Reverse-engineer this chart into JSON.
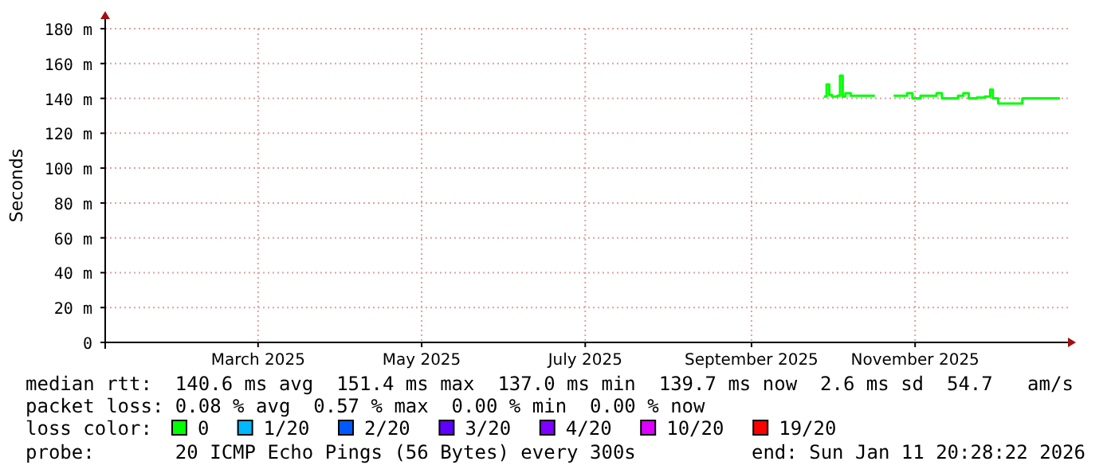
{
  "chart_data": {
    "type": "line",
    "ylabel": "Seconds",
    "x": [
      "2025-10-12",
      "2025-10-13",
      "2025-10-14",
      "2025-10-15",
      "2025-10-17",
      "2025-10-18",
      "2025-10-19",
      "2025-10-20",
      "2025-10-22",
      "2025-10-25",
      "2025-10-28",
      "2025-10-31",
      "2025-11-03",
      "2025-11-07",
      "2025-11-10",
      "2025-11-12",
      "2025-11-14",
      "2025-11-17",
      "2025-11-20",
      "2025-11-23",
      "2025-11-25",
      "2025-11-28",
      "2025-12-01",
      "2025-12-03",
      "2025-12-05",
      "2025-12-08",
      "2025-12-11",
      "2025-12-13",
      "2025-12-14",
      "2025-12-16",
      "2025-12-20",
      "2025-12-24",
      "2025-12-25",
      "2025-12-28",
      "2026-01-01",
      "2026-01-05",
      "2026-01-08"
    ],
    "series": [
      {
        "name": "0",
        "color": "#00ff00",
        "values": [
          141,
          148,
          142,
          141,
          141.5,
          153,
          141,
          143,
          141.5,
          141.5,
          141.5,
          141.5,
          null,
          141.5,
          141.5,
          143,
          140,
          141.5,
          141.5,
          143,
          140,
          140,
          141.5,
          143,
          140,
          140.5,
          141,
          145,
          140,
          137,
          137,
          137,
          140,
          140,
          140,
          140,
          140
        ]
      },
      {
        "name": "1/20",
        "color": "#00b8ff",
        "values": [
          null,
          null,
          null,
          null,
          null,
          null,
          null,
          null,
          null,
          null,
          null,
          null,
          null,
          null,
          null,
          null,
          null,
          null,
          null,
          null,
          null,
          null,
          null,
          null,
          null,
          null,
          null,
          null,
          null,
          null,
          null,
          null,
          null,
          null,
          null,
          null,
          null
        ]
      },
      {
        "name": "2/20",
        "color": "#0059ff",
        "values": [
          null,
          null,
          null,
          null,
          null,
          null,
          null,
          null,
          null,
          null,
          null,
          null,
          null,
          null,
          null,
          null,
          null,
          null,
          null,
          null,
          null,
          null,
          null,
          null,
          null,
          null,
          null,
          null,
          null,
          null,
          null,
          null,
          null,
          null,
          null,
          null,
          null
        ]
      },
      {
        "name": "3/20",
        "color": "#5e00ff",
        "values": [
          null,
          null,
          null,
          null,
          null,
          null,
          null,
          null,
          null,
          null,
          null,
          null,
          null,
          null,
          null,
          null,
          null,
          null,
          null,
          null,
          null,
          null,
          null,
          null,
          null,
          null,
          null,
          null,
          null,
          null,
          null,
          null,
          null,
          null,
          null,
          null,
          null
        ]
      },
      {
        "name": "4/20",
        "color": "#7e00ff",
        "values": [
          null,
          null,
          null,
          null,
          null,
          null,
          null,
          null,
          null,
          null,
          null,
          null,
          null,
          null,
          null,
          null,
          null,
          null,
          null,
          null,
          null,
          null,
          null,
          null,
          null,
          null,
          null,
          null,
          null,
          null,
          null,
          null,
          null,
          null,
          null,
          null,
          null
        ]
      },
      {
        "name": "10/20",
        "color": "#dd00ff",
        "values": [
          null,
          null,
          null,
          null,
          null,
          null,
          null,
          null,
          null,
          null,
          null,
          null,
          null,
          null,
          null,
          null,
          null,
          null,
          null,
          null,
          null,
          null,
          null,
          null,
          null,
          null,
          null,
          null,
          null,
          null,
          null,
          null,
          null,
          null,
          null,
          null,
          null
        ]
      },
      {
        "name": "19/20",
        "color": "#ff0000",
        "values": [
          null,
          null,
          null,
          null,
          null,
          null,
          null,
          null,
          null,
          null,
          null,
          null,
          null,
          null,
          null,
          null,
          null,
          null,
          null,
          null,
          null,
          null,
          null,
          null,
          null,
          null,
          null,
          null,
          null,
          null,
          null,
          null,
          null,
          null,
          null,
          null,
          null
        ]
      }
    ],
    "xlim": [
      "2025-01-17",
      "2026-01-11"
    ],
    "xticks": [
      {
        "value": "2025-03-15",
        "label": "March 2025"
      },
      {
        "value": "2025-05-15",
        "label": "May 2025"
      },
      {
        "value": "2025-07-15",
        "label": "July 2025"
      },
      {
        "value": "2025-09-15",
        "label": "September 2025"
      },
      {
        "value": "2025-11-15",
        "label": "November 2025"
      }
    ],
    "ylim": [
      0,
      180
    ],
    "yticks": [
      0,
      {
        "value": 20,
        "label": "20 m"
      },
      {
        "value": 40,
        "label": "40 m"
      },
      {
        "value": 60,
        "label": "60 m"
      },
      {
        "value": 80,
        "label": "80 m"
      },
      {
        "value": 100,
        "label": "100 m"
      },
      {
        "value": 120,
        "label": "120 m"
      },
      {
        "value": 140,
        "label": "140 m"
      },
      {
        "value": 160,
        "label": "160 m"
      },
      {
        "value": 180,
        "label": "180 m"
      }
    ],
    "grid": true,
    "legend": "bottom",
    "legend_title": "loss color:",
    "annotations": [
      "median rtt:  140.6 ms avg  151.4 ms max  137.0 ms min  139.7 ms now  2.6 ms sd  54.7   am/s",
      "packet loss: 0.08 % avg  0.57 % max  0.00 % min  0.00 % now",
      "probe:       20 ICMP Echo Pings (56 Bytes) every 300s",
      "end: Sun Jan 11 20:28:22 2026"
    ]
  }
}
